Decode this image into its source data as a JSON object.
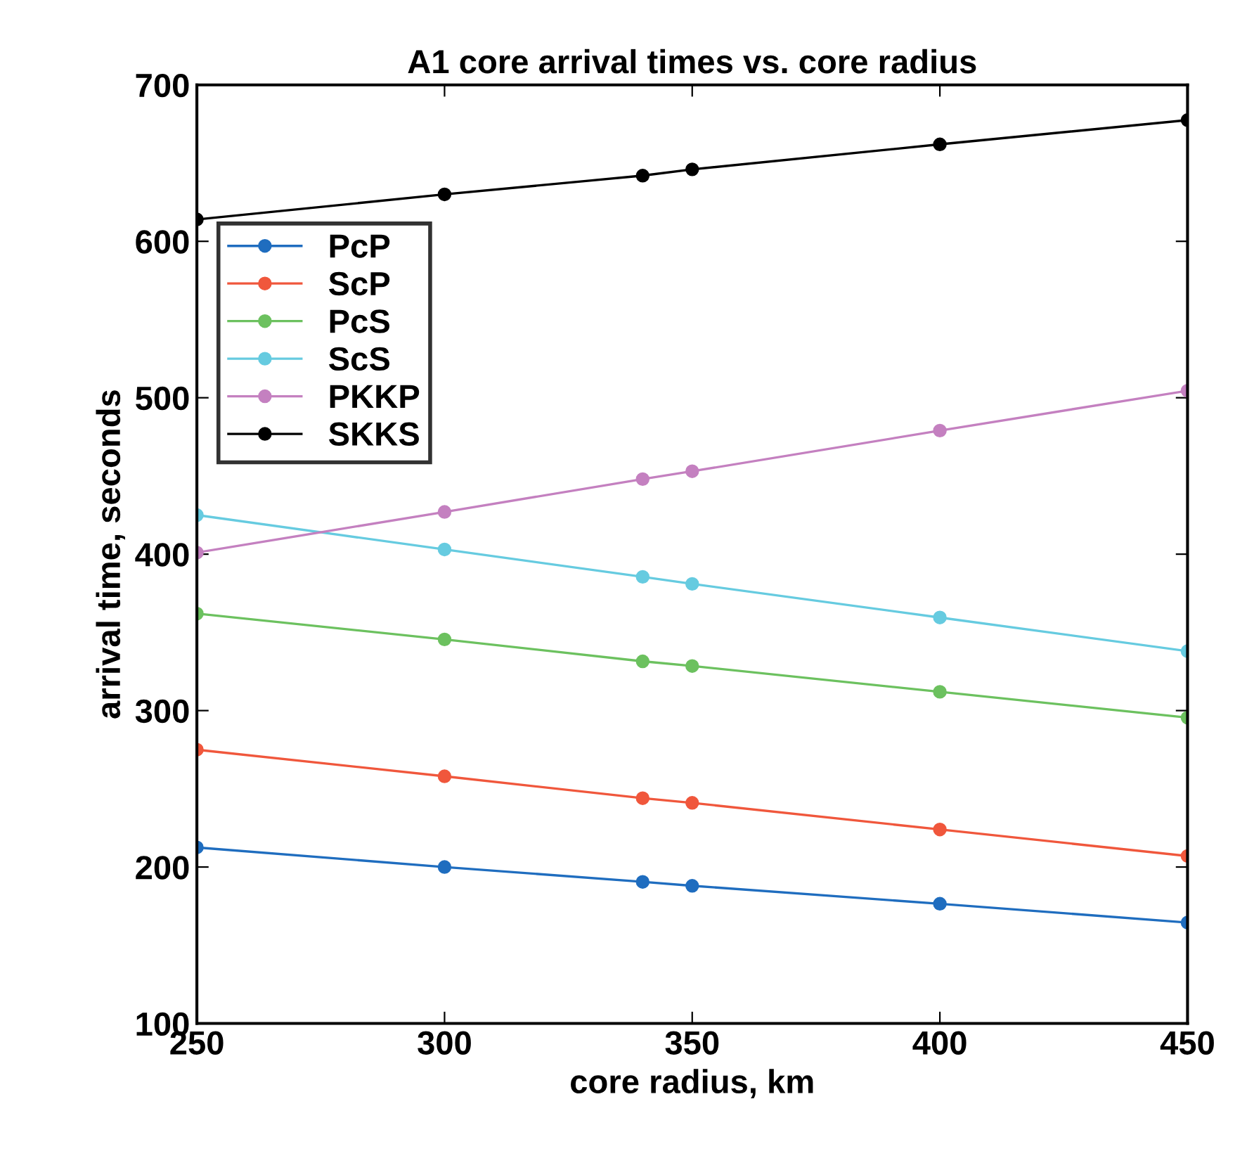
{
  "chart_data": {
    "type": "line",
    "title": "A1 core arrival times vs. core radius",
    "xlabel": "core radius, km",
    "ylabel": "arrival time, seconds",
    "x": [
      250,
      300,
      340,
      350,
      400,
      450
    ],
    "series": [
      {
        "name": "PcP",
        "color": "#1f6dbf",
        "values": [
          212.5,
          200,
          190.5,
          188,
          176.5,
          164.5
        ]
      },
      {
        "name": "ScP",
        "color": "#f0573c",
        "values": [
          275,
          258,
          244,
          241,
          224,
          207
        ]
      },
      {
        "name": "PcS",
        "color": "#6cc15f",
        "values": [
          362,
          345.5,
          331.5,
          328.5,
          312,
          295.5
        ]
      },
      {
        "name": "ScS",
        "color": "#66cbe0",
        "values": [
          425,
          403,
          385.5,
          381,
          359.5,
          338
        ]
      },
      {
        "name": "PKKP",
        "color": "#c480c0",
        "values": [
          401,
          427,
          448,
          453,
          479,
          504.5
        ]
      },
      {
        "name": "SKKS",
        "color": "#000000",
        "values": [
          614,
          630,
          642,
          646,
          662,
          677.5
        ]
      }
    ],
    "xlim": [
      250,
      450
    ],
    "xticks": [
      250,
      300,
      350,
      400,
      450
    ],
    "ylim": [
      100,
      700
    ],
    "yticks": [
      100,
      200,
      300,
      400,
      500,
      600,
      700
    ],
    "marker": "circle",
    "line_style": "solid",
    "grid": false,
    "legend": "top left"
  }
}
